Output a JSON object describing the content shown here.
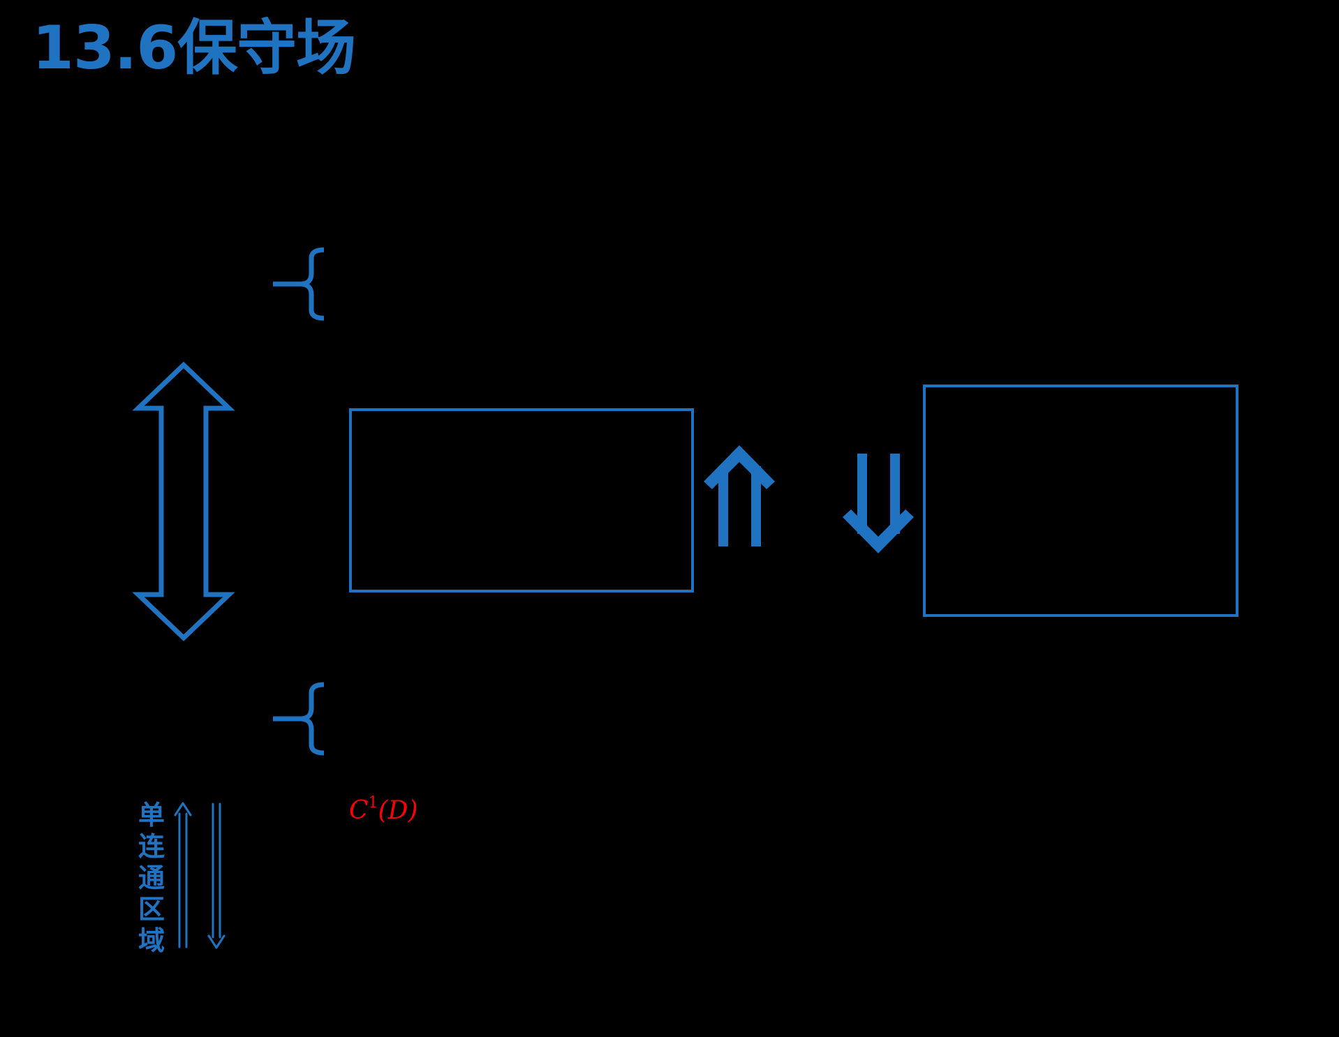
{
  "title": "13.6保守场",
  "colors": {
    "accent": "#1f73c1",
    "highlight": "#ff0000",
    "background": "#000000"
  },
  "labels": {
    "vertical": "单连通区域",
    "function_space": "C",
    "function_space_sup": "1",
    "function_space_arg": "(D)"
  },
  "icons": {
    "top_brace": "left-curly-brace-icon",
    "bottom_brace": "left-curly-brace-icon",
    "big_arrow": "double-headed-up-down-arrow-icon",
    "implies_up": "double-up-arrow-icon",
    "implies_down": "double-down-arrow-icon",
    "small_up": "thin-double-up-arrow-icon",
    "small_down": "thin-double-down-arrow-icon"
  }
}
